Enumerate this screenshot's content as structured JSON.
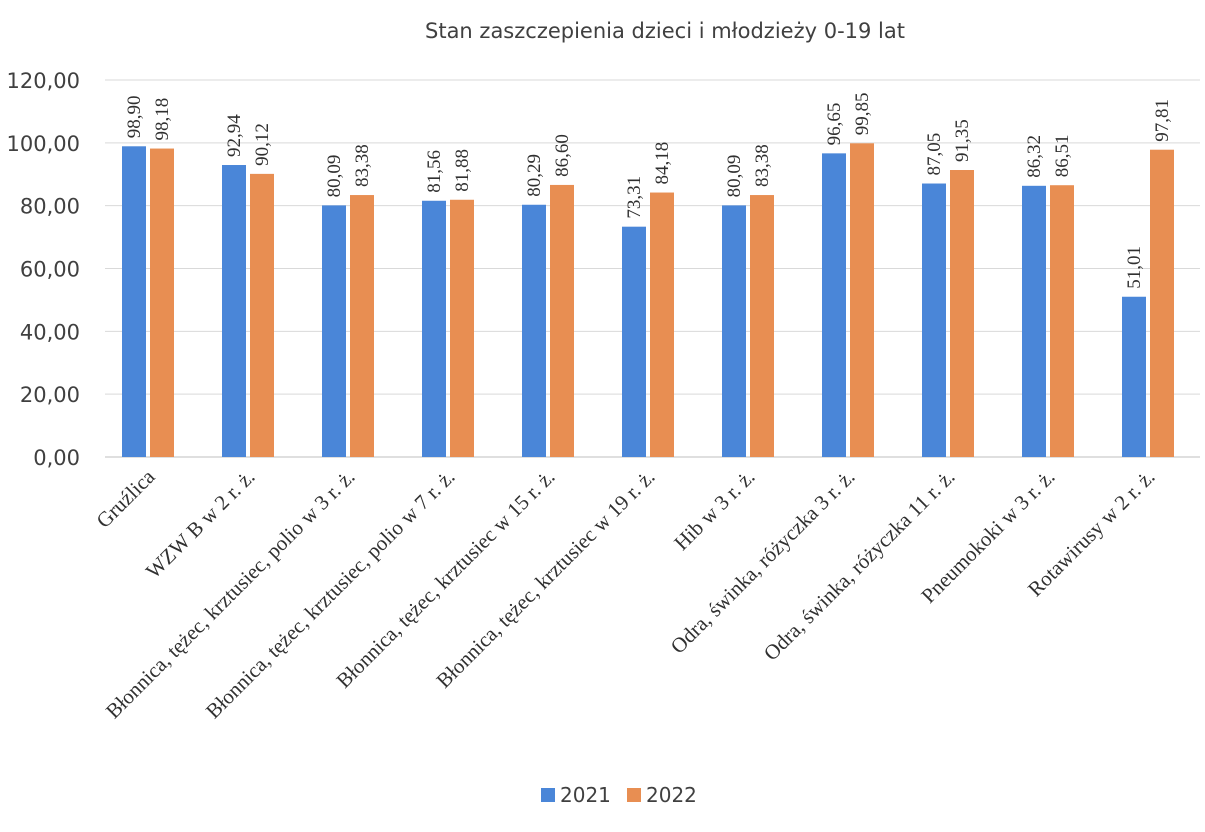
{
  "chart_data": {
    "type": "bar",
    "title": "Stan zaszczepienia dzieci i młodzieży 0-19 lat",
    "xlabel": "",
    "ylabel": "",
    "ylim": [
      0,
      120
    ],
    "yticks": [
      "0,00",
      "20,00",
      "40,00",
      "60,00",
      "80,00",
      "100,00",
      "120,00"
    ],
    "grid": true,
    "legend_position": "bottom",
    "categories": [
      "Gruźlica",
      "WZW B w 2 r. ż.",
      "Błonnica, tężec, krztusiec, polio w 3 r. ż.",
      "Błonnica, tężec, krztusiec, polio w 7 r. ż.",
      "Błonnica, tężec, krztusiec w 15 r. ż.",
      "Błonnica, tężec, krztusiec w 19 r. ż.",
      "Hib w 3 r. ż.",
      "Odra, świnka, różyczka 3 r. ż.",
      "Odra, świnka, różyczka 11 r. ż.",
      "Pneumokoki w 3 r. ż.",
      "Rotawirusy w 2 r. ż."
    ],
    "series": [
      {
        "name": "2021",
        "color": "#4a86d8",
        "values": [
          98.9,
          92.94,
          80.09,
          81.56,
          80.29,
          73.31,
          80.09,
          96.65,
          87.05,
          86.32,
          51.01
        ],
        "labels": [
          "98,90",
          "92,94",
          "80,09",
          "81,56",
          "80,29",
          "73,31",
          "80,09",
          "96,65",
          "87,05",
          "86,32",
          "51,01"
        ]
      },
      {
        "name": "2022",
        "color": "#e88e52",
        "values": [
          98.18,
          90.12,
          83.38,
          81.88,
          86.6,
          84.18,
          83.38,
          99.85,
          91.35,
          86.51,
          97.81
        ],
        "labels": [
          "98,18",
          "90,12",
          "83,38",
          "81,88",
          "86,60",
          "84,18",
          "83,38",
          "99,85",
          "91,35",
          "86,51",
          "97,81"
        ]
      }
    ]
  }
}
